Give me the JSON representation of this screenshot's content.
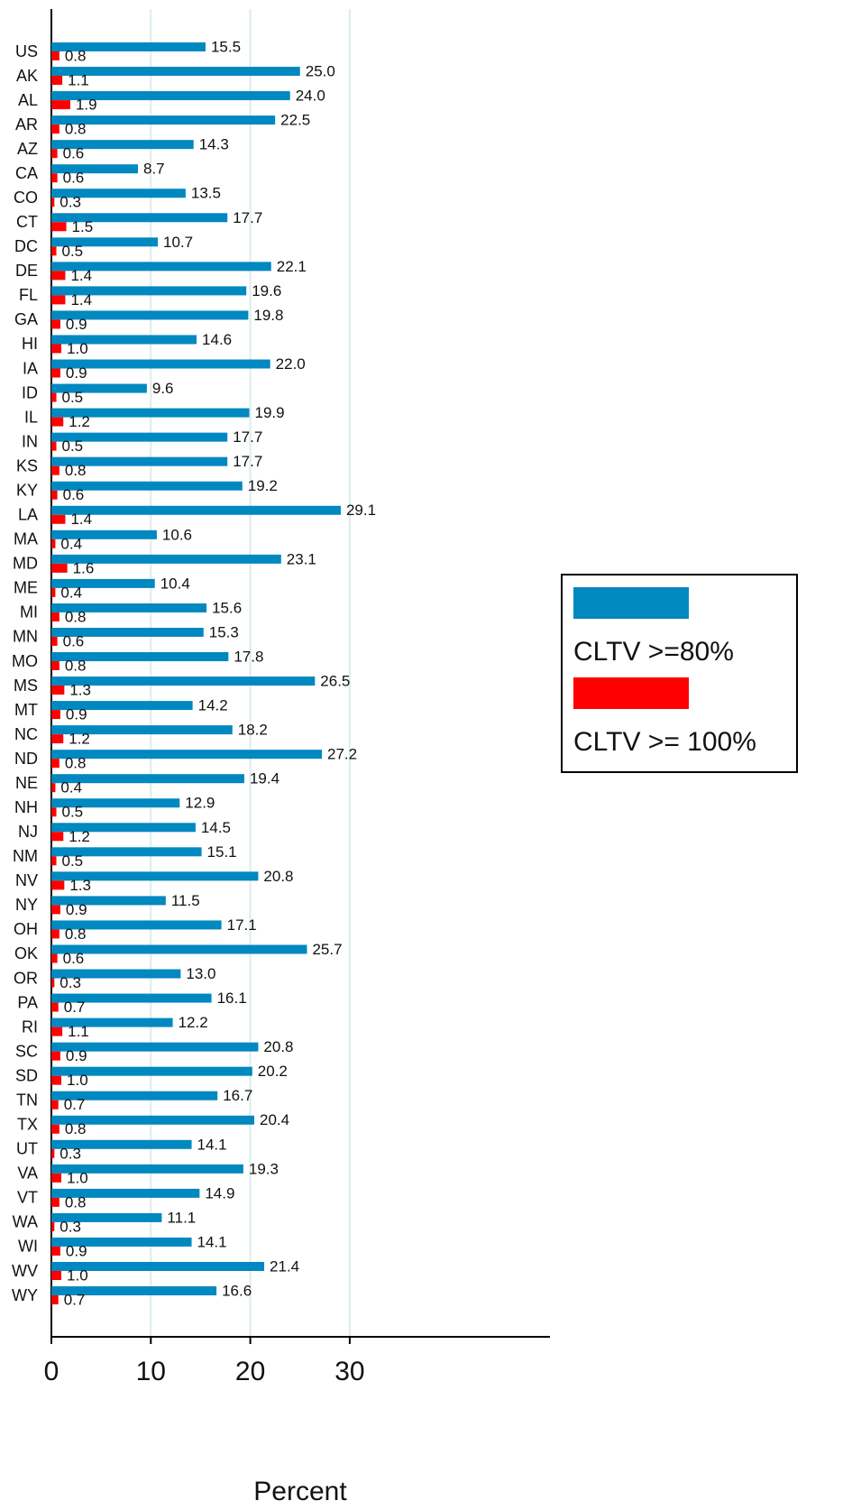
{
  "chart_data": {
    "type": "bar",
    "orientation": "horizontal",
    "x_label": "Percent",
    "categories": [
      "US",
      "AK",
      "AL",
      "AR",
      "AZ",
      "CA",
      "CO",
      "CT",
      "DC",
      "DE",
      "FL",
      "GA",
      "HI",
      "IA",
      "ID",
      "IL",
      "IN",
      "KS",
      "KY",
      "LA",
      "MA",
      "MD",
      "ME",
      "MI",
      "MN",
      "MO",
      "MS",
      "MT",
      "NC",
      "ND",
      "NE",
      "NH",
      "NJ",
      "NM",
      "NV",
      "NY",
      "OH",
      "OK",
      "OR",
      "PA",
      "RI",
      "SC",
      "SD",
      "TN",
      "TX",
      "UT",
      "VA",
      "VT",
      "WA",
      "WI",
      "WV",
      "WY"
    ],
    "series": [
      {
        "name": "CLTV >=80%",
        "color": "#0088c0",
        "values": [
          15.5,
          25.0,
          24.0,
          22.5,
          14.3,
          8.7,
          13.5,
          17.7,
          10.7,
          22.1,
          19.6,
          19.8,
          14.6,
          22.0,
          9.6,
          19.9,
          17.7,
          17.7,
          19.2,
          29.1,
          10.6,
          23.1,
          10.4,
          15.6,
          15.3,
          17.8,
          26.5,
          14.2,
          18.2,
          27.2,
          19.4,
          12.9,
          14.5,
          15.1,
          20.8,
          11.5,
          17.1,
          25.7,
          13.0,
          16.1,
          12.2,
          20.8,
          20.2,
          16.7,
          20.4,
          14.1,
          19.3,
          14.9,
          11.1,
          14.1,
          21.4,
          16.6
        ],
        "value_labels": [
          "15.5",
          "25.0",
          "24.0",
          "22.5",
          "14.3",
          "8.7",
          "13.5",
          "17.7",
          "10.7",
          "22.1",
          "19.6",
          "19.8",
          "14.6",
          "22.0",
          "9.6",
          "19.9",
          "17.7",
          "17.7",
          "19.2",
          "29.1",
          "10.6",
          "23.1",
          "10.4",
          "15.6",
          "15.3",
          "17.8",
          "26.5",
          "14.2",
          "18.2",
          "27.2",
          "19.4",
          "12.9",
          "14.5",
          "15.1",
          "20.8",
          "11.5",
          "17.1",
          "25.7",
          "13.0",
          "16.1",
          "12.2",
          "20.8",
          "20.2",
          "16.7",
          "20.4",
          "14.1",
          "19.3",
          "14.9",
          "11.1",
          "14.1",
          "21.4",
          "16.6"
        ]
      },
      {
        "name": "CLTV >= 100%",
        "color": "#ff0000",
        "values": [
          0.8,
          1.1,
          1.9,
          0.8,
          0.6,
          0.6,
          0.3,
          1.5,
          0.5,
          1.4,
          1.4,
          0.9,
          1.0,
          0.9,
          0.5,
          1.2,
          0.5,
          0.8,
          0.6,
          1.4,
          0.4,
          1.6,
          0.4,
          0.8,
          0.6,
          0.8,
          1.3,
          0.9,
          1.2,
          0.8,
          0.4,
          0.5,
          1.2,
          0.5,
          1.3,
          0.9,
          0.8,
          0.6,
          0.3,
          0.7,
          1.1,
          0.9,
          1.0,
          0.7,
          0.8,
          0.3,
          1.0,
          0.8,
          0.3,
          0.9,
          1.0,
          0.7
        ],
        "value_labels": [
          "0.8",
          "1.1",
          "1.9",
          "0.8",
          "0.6",
          "0.6",
          "0.3",
          "1.5",
          "0.5",
          "1.4",
          "1.4",
          "0.9",
          "1.0",
          "0.9",
          "0.5",
          "1.2",
          "0.5",
          "0.8",
          "0.6",
          "1.4",
          "0.4",
          "1.6",
          "0.4",
          "0.8",
          "0.6",
          "0.8",
          "1.3",
          "0.9",
          "1.2",
          "0.8",
          "0.4",
          "0.5",
          "1.2",
          "0.5",
          "1.3",
          "0.9",
          "0.8",
          "0.6",
          "0.3",
          "0.7",
          "1.1",
          "0.9",
          "1.0",
          "0.7",
          "0.8",
          "0.3",
          "1.0",
          "0.8",
          "0.3",
          "0.9",
          "1.0",
          "0.7"
        ]
      }
    ],
    "xlim": [
      0,
      50
    ],
    "xticks": [
      0,
      10,
      20,
      30
    ],
    "grid": true,
    "legend": "right"
  }
}
